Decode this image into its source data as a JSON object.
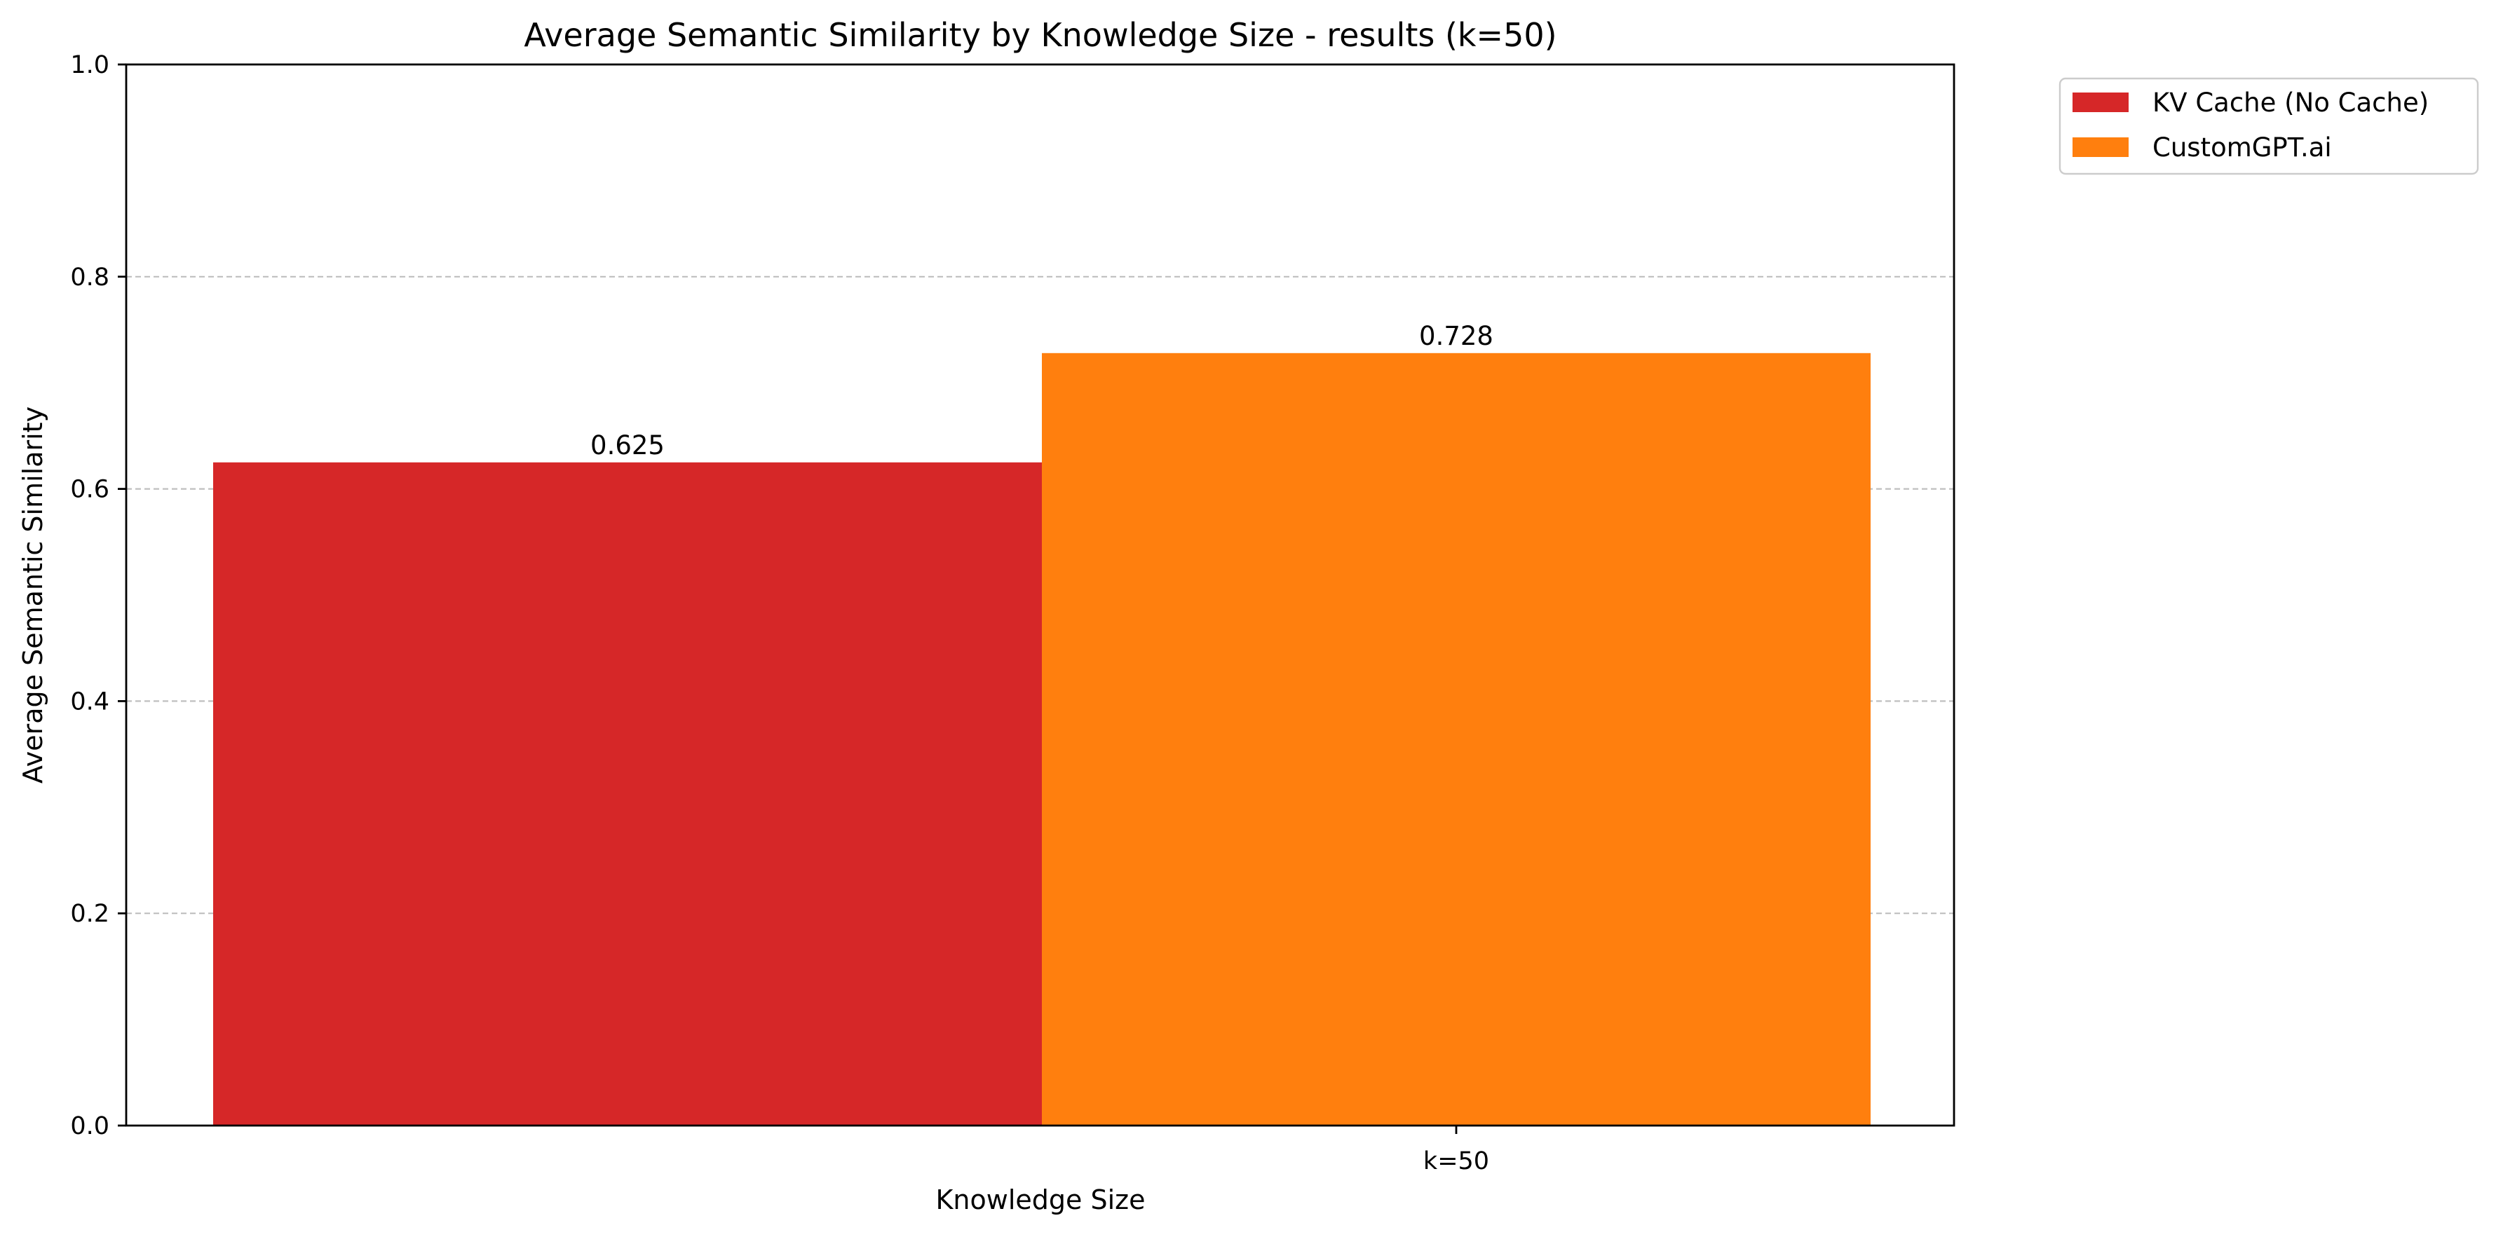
{
  "chart_data": {
    "type": "bar",
    "title": "Average Semantic Similarity by Knowledge Size - results (k=50)",
    "xlabel": "Knowledge Size",
    "ylabel": "Average Semantic Similarity",
    "categories": [
      "k=50"
    ],
    "series": [
      {
        "name": "KV Cache (No Cache)",
        "values": [
          0.625
        ],
        "value_labels": [
          "0.625"
        ],
        "color": "#d62728"
      },
      {
        "name": "CustomGPT.ai",
        "values": [
          0.728
        ],
        "value_labels": [
          "0.728"
        ],
        "color": "#ff7f0e"
      }
    ],
    "ylim": [
      0,
      1.0
    ],
    "yticks": [
      0.0,
      0.2,
      0.4,
      0.6,
      0.8,
      1.0
    ],
    "ytick_labels": [
      "0.0",
      "0.2",
      "0.4",
      "0.6",
      "0.8",
      "1.0"
    ],
    "grid": "y-dashed",
    "legend_position": "outside-top-right"
  }
}
